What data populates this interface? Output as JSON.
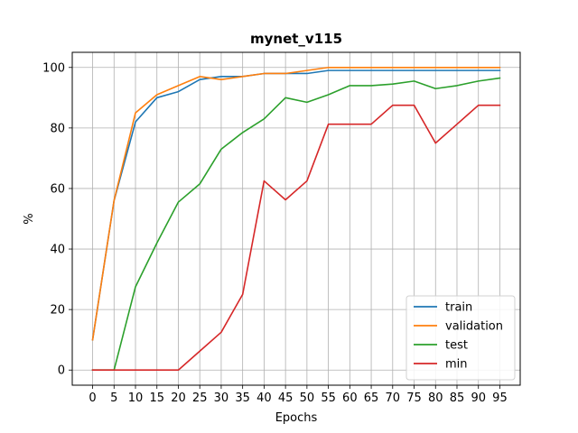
{
  "chart_data": {
    "type": "line",
    "title": "mynet_v115",
    "xlabel": "Epochs",
    "ylabel": "%",
    "xlim": [
      -4.75,
      99.75
    ],
    "ylim": [
      -5,
      105
    ],
    "x": [
      0,
      5,
      10,
      15,
      20,
      25,
      30,
      35,
      40,
      45,
      50,
      55,
      60,
      65,
      70,
      75,
      80,
      85,
      90,
      95
    ],
    "xticks": [
      0,
      5,
      10,
      15,
      20,
      25,
      30,
      35,
      40,
      45,
      50,
      55,
      60,
      65,
      70,
      75,
      80,
      85,
      90,
      95
    ],
    "yticks": [
      0,
      20,
      40,
      60,
      80,
      100
    ],
    "grid": true,
    "legend_position": "lower-right",
    "series": [
      {
        "name": "train",
        "color": "#1f77b4",
        "values": [
          10,
          56,
          82,
          90,
          92,
          96,
          97,
          97,
          98,
          98,
          98,
          99,
          99,
          99,
          99,
          99,
          99,
          99,
          99,
          99
        ]
      },
      {
        "name": "validation",
        "color": "#ff7f0e",
        "values": [
          10,
          56,
          85,
          91,
          94,
          97,
          96,
          97,
          98,
          98,
          99,
          100,
          100,
          100,
          100,
          100,
          100,
          100,
          100,
          100
        ]
      },
      {
        "name": "test",
        "color": "#2ca02c",
        "values": [
          0,
          0,
          27.5,
          42,
          55.5,
          61.5,
          73,
          78.5,
          83,
          90,
          88.5,
          91,
          94,
          94,
          94.5,
          95.5,
          93,
          94,
          95.5,
          96.5
        ]
      },
      {
        "name": "min",
        "color": "#d62728",
        "values": [
          0,
          0,
          0,
          0,
          0,
          6.25,
          12.5,
          25,
          62.5,
          56.25,
          62.5,
          81.25,
          81.25,
          81.25,
          87.5,
          87.5,
          75,
          81.25,
          87.5,
          87.5
        ]
      }
    ]
  }
}
